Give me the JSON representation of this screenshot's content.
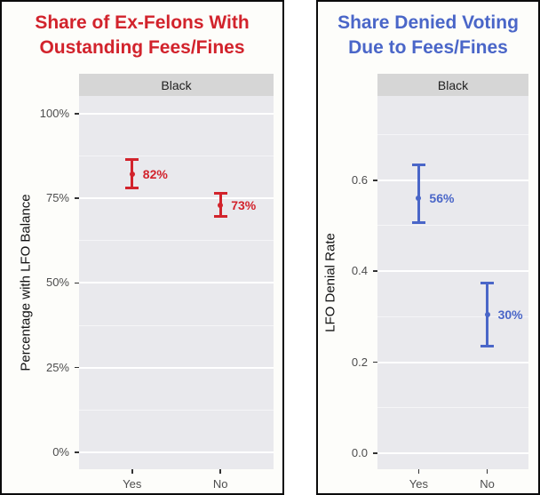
{
  "chart_data": [
    {
      "type": "errorbar",
      "title_lines": [
        "Share of Ex-Felons With",
        "Oustanding Fees/Fines"
      ],
      "title_color": "#d2232c",
      "accent_color": "#d2232c",
      "facet_label": "Black",
      "xlabel": "",
      "ylabel": "Percentage with LFO Balance",
      "categories": [
        "Yes",
        "No"
      ],
      "points": [
        {
          "category": "Yes",
          "value": 0.82,
          "low": 0.78,
          "high": 0.865,
          "label": "82%"
        },
        {
          "category": "No",
          "value": 0.73,
          "low": 0.695,
          "high": 0.765,
          "label": "73%"
        }
      ],
      "yticks": [
        {
          "value": 1.0,
          "label": "100%"
        },
        {
          "value": 0.75,
          "label": "75%"
        },
        {
          "value": 0.5,
          "label": "50%"
        },
        {
          "value": 0.25,
          "label": "25%"
        },
        {
          "value": 0.0,
          "label": "0%"
        }
      ],
      "ylim": [
        -0.05,
        1.052
      ],
      "grid": "major+minor",
      "legend": "none"
    },
    {
      "type": "errorbar",
      "title_lines": [
        "Share Denied Voting",
        "Due to Fees/Fines"
      ],
      "title_color": "#4a66c8",
      "accent_color": "#4a66c8",
      "facet_label": "Black",
      "xlabel": "",
      "ylabel": "LFO Denial Rate",
      "categories": [
        "Yes",
        "No"
      ],
      "points": [
        {
          "category": "Yes",
          "value": 0.56,
          "low": 0.505,
          "high": 0.635,
          "label": "56%"
        },
        {
          "category": "No",
          "value": 0.305,
          "low": 0.235,
          "high": 0.375,
          "label": "30%"
        }
      ],
      "yticks": [
        {
          "value": 0.6,
          "label": "0.6"
        },
        {
          "value": 0.4,
          "label": "0.4"
        },
        {
          "value": 0.2,
          "label": "0.2"
        },
        {
          "value": 0.0,
          "label": "0.0"
        }
      ],
      "ylim": [
        -0.035,
        0.785
      ],
      "grid": "major+minor",
      "legend": "none"
    }
  ]
}
